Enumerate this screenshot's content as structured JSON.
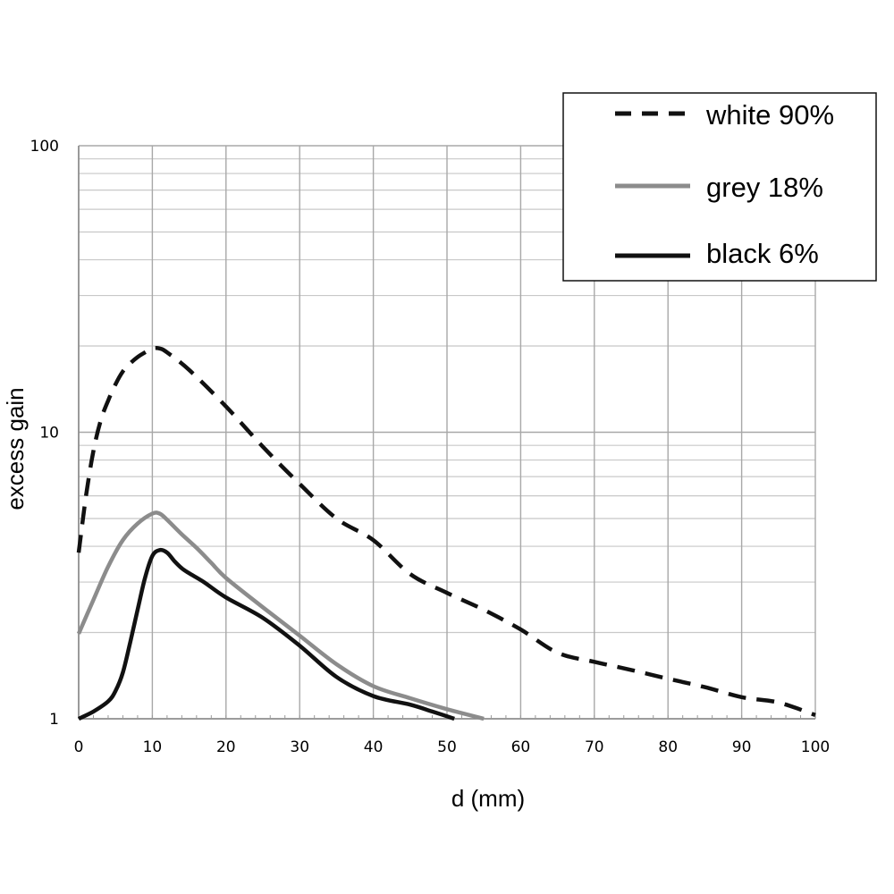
{
  "chart_data": {
    "type": "line",
    "title": "",
    "xlabel": "d (mm)",
    "ylabel": "excess gain",
    "xlim": [
      0,
      100
    ],
    "ylim": [
      1,
      100
    ],
    "yscale": "log",
    "grid": true,
    "legend_position": "top-right",
    "x_ticks": [
      0,
      10,
      20,
      30,
      40,
      50,
      60,
      70,
      80,
      90,
      100
    ],
    "x_tick_labels": [
      "0",
      "10",
      "20",
      "30",
      "40",
      "50",
      "60",
      "70",
      "80",
      "90",
      "100"
    ],
    "y_ticks": [
      1,
      10,
      100
    ],
    "y_tick_labels": [
      "1",
      "10",
      "100"
    ],
    "series": [
      {
        "name": "white 90%",
        "style": "dashed",
        "color": "#111111",
        "x": [
          0,
          1,
          2,
          3,
          4,
          5,
          6,
          7,
          8,
          9,
          10,
          11,
          12,
          15,
          20,
          25,
          30,
          35,
          40,
          45,
          50,
          55,
          60,
          65,
          70,
          75,
          80,
          85,
          90,
          95,
          100
        ],
        "y": [
          3.8,
          6.0,
          8.6,
          11.0,
          12.9,
          14.7,
          16.3,
          17.4,
          18.3,
          19.0,
          19.6,
          19.6,
          19.0,
          16.5,
          12.3,
          8.9,
          6.6,
          5.0,
          4.2,
          3.2,
          2.75,
          2.4,
          2.05,
          1.7,
          1.58,
          1.48,
          1.38,
          1.29,
          1.19,
          1.14,
          1.03
        ]
      },
      {
        "name": "grey 18%",
        "style": "solid",
        "color": "#8c8c8c",
        "x": [
          0,
          2,
          4,
          6,
          8,
          10,
          11,
          12,
          14,
          16,
          18,
          20,
          25,
          30,
          35,
          40,
          45,
          50,
          55
        ],
        "y": [
          1.98,
          2.6,
          3.4,
          4.2,
          4.8,
          5.2,
          5.2,
          4.95,
          4.4,
          3.95,
          3.5,
          3.1,
          2.45,
          1.95,
          1.55,
          1.3,
          1.18,
          1.08,
          1.0
        ]
      },
      {
        "name": "black 6%",
        "style": "solid",
        "color": "#111111",
        "x": [
          0,
          2,
          4,
          5,
          6,
          7,
          8,
          9,
          10,
          11,
          12,
          13,
          14,
          15,
          17,
          20,
          25,
          30,
          35,
          40,
          45,
          48,
          51
        ],
        "y": [
          1.0,
          1.06,
          1.15,
          1.25,
          1.45,
          1.85,
          2.4,
          3.1,
          3.7,
          3.88,
          3.8,
          3.55,
          3.35,
          3.22,
          3.0,
          2.65,
          2.25,
          1.8,
          1.4,
          1.2,
          1.12,
          1.06,
          1.0
        ]
      }
    ]
  }
}
